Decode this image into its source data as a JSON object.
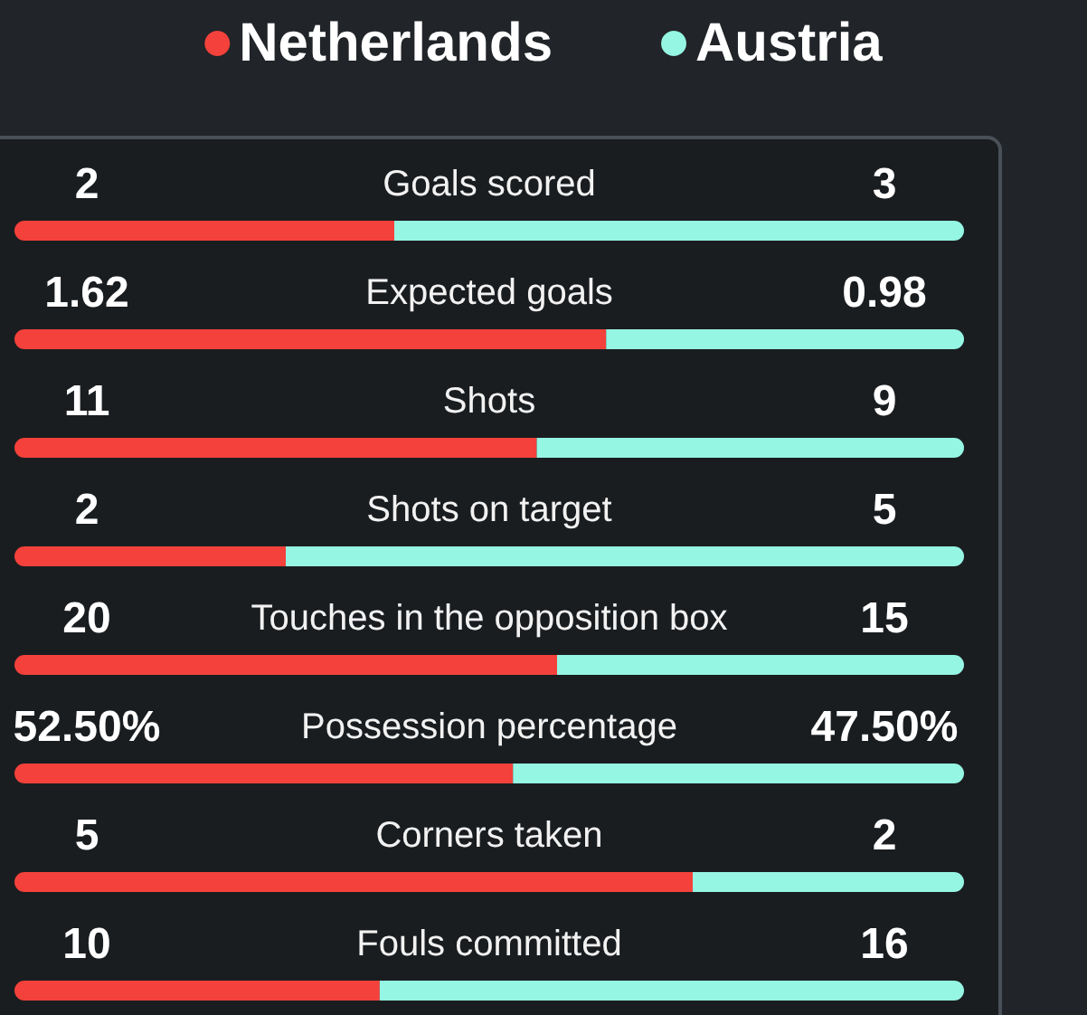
{
  "chart_data": [
    {
      "type": "bar",
      "orientation": "horizontal",
      "stacked": true,
      "legend": "top",
      "categories": [
        "Goals scored"
      ],
      "series": [
        {
          "name": "Netherlands",
          "color": "#f4413b",
          "values": [
            2
          ],
          "value_labels": [
            "2"
          ]
        },
        {
          "name": "Austria",
          "color": "#95f6e3",
          "values": [
            3
          ],
          "value_labels": [
            "3"
          ]
        }
      ]
    },
    {
      "type": "bar",
      "orientation": "horizontal",
      "stacked": true,
      "categories": [
        "Expected goals"
      ],
      "series": [
        {
          "color": "#f4413b",
          "values": [
            1.62
          ],
          "value_labels": [
            "1.62"
          ]
        },
        {
          "color": "#95f6e3",
          "values": [
            0.98
          ],
          "value_labels": [
            "0.98"
          ]
        }
      ]
    },
    {
      "type": "bar",
      "orientation": "horizontal",
      "stacked": true,
      "categories": [
        "Shots"
      ],
      "series": [
        {
          "color": "#f4413b",
          "values": [
            11
          ],
          "value_labels": [
            "11"
          ]
        },
        {
          "color": "#95f6e3",
          "values": [
            9
          ],
          "value_labels": [
            "9"
          ]
        }
      ]
    },
    {
      "type": "bar",
      "orientation": "horizontal",
      "stacked": true,
      "categories": [
        "Shots on target"
      ],
      "series": [
        {
          "color": "#f4413b",
          "values": [
            2
          ],
          "value_labels": [
            "2"
          ]
        },
        {
          "color": "#95f6e3",
          "values": [
            5
          ],
          "value_labels": [
            "5"
          ]
        }
      ]
    },
    {
      "type": "bar",
      "orientation": "horizontal",
      "stacked": true,
      "categories": [
        "Touches in the opposition box"
      ],
      "series": [
        {
          "color": "#f4413b",
          "values": [
            20
          ],
          "value_labels": [
            "20"
          ]
        },
        {
          "color": "#95f6e3",
          "values": [
            15
          ],
          "value_labels": [
            "15"
          ]
        }
      ]
    },
    {
      "type": "bar",
      "orientation": "horizontal",
      "stacked": true,
      "categories": [
        "Possession percentage"
      ],
      "series": [
        {
          "color": "#f4413b",
          "values": [
            52.5
          ],
          "value_labels": [
            "52.50%"
          ]
        },
        {
          "color": "#95f6e3",
          "values": [
            47.5
          ],
          "value_labels": [
            "47.50%"
          ]
        }
      ]
    },
    {
      "type": "bar",
      "orientation": "horizontal",
      "stacked": true,
      "categories": [
        "Corners taken"
      ],
      "series": [
        {
          "color": "#f4413b",
          "values": [
            5
          ],
          "value_labels": [
            "5"
          ]
        },
        {
          "color": "#95f6e3",
          "values": [
            2
          ],
          "value_labels": [
            "2"
          ]
        }
      ]
    },
    {
      "type": "bar",
      "orientation": "horizontal",
      "stacked": true,
      "categories": [
        "Fouls committed"
      ],
      "series": [
        {
          "color": "#f4413b",
          "values": [
            10
          ],
          "value_labels": [
            "10"
          ]
        },
        {
          "color": "#95f6e3",
          "values": [
            16
          ],
          "value_labels": [
            "16"
          ]
        }
      ]
    }
  ]
}
